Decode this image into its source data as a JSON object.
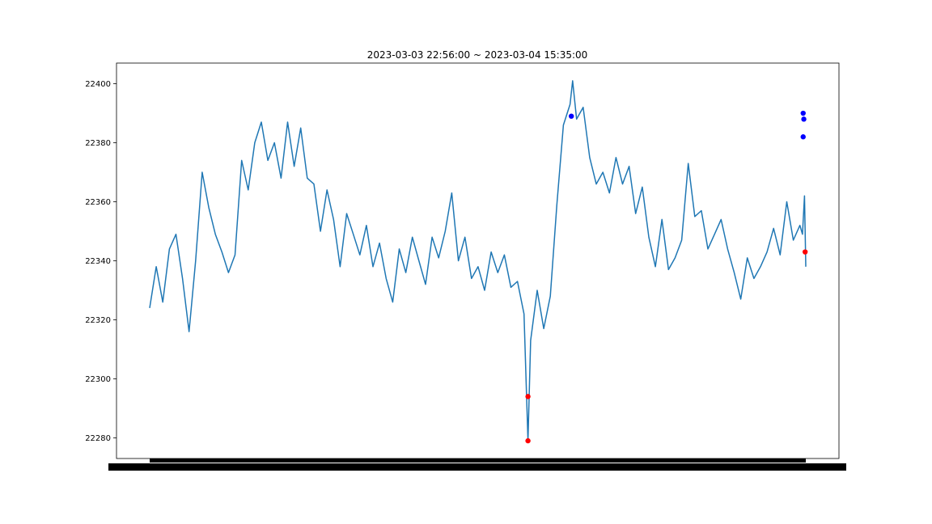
{
  "chart_data": {
    "type": "line",
    "title": "2023-03-03 22:56:00 ~ 2023-03-04 15:35:00",
    "xlabel": "",
    "ylabel": "",
    "x_start": "2023-03-03 22:56:00",
    "x_end": "2023-03-04 15:35:00",
    "ylim": [
      22273,
      22407
    ],
    "yticks": [
      22280,
      22300,
      22320,
      22340,
      22360,
      22380,
      22400
    ],
    "ytick_labels": [
      "22280",
      "22300",
      "22320",
      "22340",
      "22360",
      "22380",
      "22400"
    ],
    "grid": false,
    "series": [
      {
        "color": "#1f77b4",
        "points": [
          [
            "2023-03-03 22:56",
            22324
          ],
          [
            "2023-03-03 23:06",
            22338
          ],
          [
            "2023-03-03 23:16",
            22326
          ],
          [
            "2023-03-03 23:26",
            22344
          ],
          [
            "2023-03-03 23:36",
            22349
          ],
          [
            "2023-03-03 23:46",
            22334
          ],
          [
            "2023-03-03 23:56",
            22316
          ],
          [
            "2023-03-04 00:06",
            22340
          ],
          [
            "2023-03-04 00:16",
            22370
          ],
          [
            "2023-03-04 00:26",
            22358
          ],
          [
            "2023-03-04 00:36",
            22349
          ],
          [
            "2023-03-04 00:46",
            22343
          ],
          [
            "2023-03-04 00:56",
            22336
          ],
          [
            "2023-03-04 01:06",
            22342
          ],
          [
            "2023-03-04 01:16",
            22374
          ],
          [
            "2023-03-04 01:26",
            22364
          ],
          [
            "2023-03-04 01:36",
            22380
          ],
          [
            "2023-03-04 01:46",
            22387
          ],
          [
            "2023-03-04 01:56",
            22374
          ],
          [
            "2023-03-04 02:06",
            22380
          ],
          [
            "2023-03-04 02:16",
            22368
          ],
          [
            "2023-03-04 02:26",
            22387
          ],
          [
            "2023-03-04 02:36",
            22372
          ],
          [
            "2023-03-04 02:46",
            22385
          ],
          [
            "2023-03-04 02:56",
            22368
          ],
          [
            "2023-03-04 03:06",
            22366
          ],
          [
            "2023-03-04 03:16",
            22350
          ],
          [
            "2023-03-04 03:26",
            22364
          ],
          [
            "2023-03-04 03:36",
            22354
          ],
          [
            "2023-03-04 03:46",
            22338
          ],
          [
            "2023-03-04 03:56",
            22356
          ],
          [
            "2023-03-04 04:06",
            22349
          ],
          [
            "2023-03-04 04:16",
            22342
          ],
          [
            "2023-03-04 04:26",
            22352
          ],
          [
            "2023-03-04 04:36",
            22338
          ],
          [
            "2023-03-04 04:46",
            22346
          ],
          [
            "2023-03-04 04:56",
            22334
          ],
          [
            "2023-03-04 05:06",
            22326
          ],
          [
            "2023-03-04 05:16",
            22344
          ],
          [
            "2023-03-04 05:26",
            22336
          ],
          [
            "2023-03-04 05:36",
            22348
          ],
          [
            "2023-03-04 05:46",
            22340
          ],
          [
            "2023-03-04 05:56",
            22332
          ],
          [
            "2023-03-04 06:06",
            22348
          ],
          [
            "2023-03-04 06:16",
            22341
          ],
          [
            "2023-03-04 06:26",
            22350
          ],
          [
            "2023-03-04 06:36",
            22363
          ],
          [
            "2023-03-04 06:46",
            22340
          ],
          [
            "2023-03-04 06:56",
            22348
          ],
          [
            "2023-03-04 07:06",
            22334
          ],
          [
            "2023-03-04 07:16",
            22338
          ],
          [
            "2023-03-04 07:26",
            22330
          ],
          [
            "2023-03-04 07:36",
            22343
          ],
          [
            "2023-03-04 07:46",
            22336
          ],
          [
            "2023-03-04 07:56",
            22342
          ],
          [
            "2023-03-04 08:06",
            22331
          ],
          [
            "2023-03-04 08:16",
            22333
          ],
          [
            "2023-03-04 08:26",
            22322
          ],
          [
            "2023-03-04 08:32",
            22279
          ],
          [
            "2023-03-04 08:36",
            22313
          ],
          [
            "2023-03-04 08:46",
            22330
          ],
          [
            "2023-03-04 08:56",
            22317
          ],
          [
            "2023-03-04 09:06",
            22328
          ],
          [
            "2023-03-04 09:16",
            22359
          ],
          [
            "2023-03-04 09:26",
            22386
          ],
          [
            "2023-03-04 09:36",
            22393
          ],
          [
            "2023-03-04 09:40",
            22401
          ],
          [
            "2023-03-04 09:46",
            22388
          ],
          [
            "2023-03-04 09:56",
            22392
          ],
          [
            "2023-03-04 10:06",
            22375
          ],
          [
            "2023-03-04 10:16",
            22366
          ],
          [
            "2023-03-04 10:26",
            22370
          ],
          [
            "2023-03-04 10:36",
            22363
          ],
          [
            "2023-03-04 10:46",
            22375
          ],
          [
            "2023-03-04 10:56",
            22366
          ],
          [
            "2023-03-04 11:06",
            22372
          ],
          [
            "2023-03-04 11:16",
            22356
          ],
          [
            "2023-03-04 11:26",
            22365
          ],
          [
            "2023-03-04 11:36",
            22348
          ],
          [
            "2023-03-04 11:46",
            22338
          ],
          [
            "2023-03-04 11:56",
            22354
          ],
          [
            "2023-03-04 12:06",
            22337
          ],
          [
            "2023-03-04 12:16",
            22341
          ],
          [
            "2023-03-04 12:26",
            22347
          ],
          [
            "2023-03-04 12:36",
            22373
          ],
          [
            "2023-03-04 12:46",
            22355
          ],
          [
            "2023-03-04 12:56",
            22357
          ],
          [
            "2023-03-04 13:06",
            22344
          ],
          [
            "2023-03-04 13:16",
            22349
          ],
          [
            "2023-03-04 13:26",
            22354
          ],
          [
            "2023-03-04 13:36",
            22344
          ],
          [
            "2023-03-04 13:46",
            22336
          ],
          [
            "2023-03-04 13:56",
            22327
          ],
          [
            "2023-03-04 14:06",
            22341
          ],
          [
            "2023-03-04 14:16",
            22334
          ],
          [
            "2023-03-04 14:26",
            22338
          ],
          [
            "2023-03-04 14:36",
            22343
          ],
          [
            "2023-03-04 14:46",
            22351
          ],
          [
            "2023-03-04 14:56",
            22342
          ],
          [
            "2023-03-04 15:06",
            22360
          ],
          [
            "2023-03-04 15:16",
            22347
          ],
          [
            "2023-03-04 15:26",
            22352
          ],
          [
            "2023-03-04 15:30",
            22349
          ],
          [
            "2023-03-04 15:33",
            22362
          ],
          [
            "2023-03-04 15:35",
            22338
          ]
        ]
      }
    ],
    "markers": {
      "blue": [
        [
          "2023-03-04 09:38",
          22389
        ],
        [
          "2023-03-04 15:31",
          22390
        ],
        [
          "2023-03-04 15:31",
          22382
        ],
        [
          "2023-03-04 15:32",
          22388
        ]
      ],
      "red": [
        [
          "2023-03-04 08:32",
          22294
        ],
        [
          "2023-03-04 08:32",
          22279
        ],
        [
          "2023-03-04 15:34",
          22343
        ]
      ],
      "blue_color": "#0000ff",
      "red_color": "#ff0000"
    }
  }
}
